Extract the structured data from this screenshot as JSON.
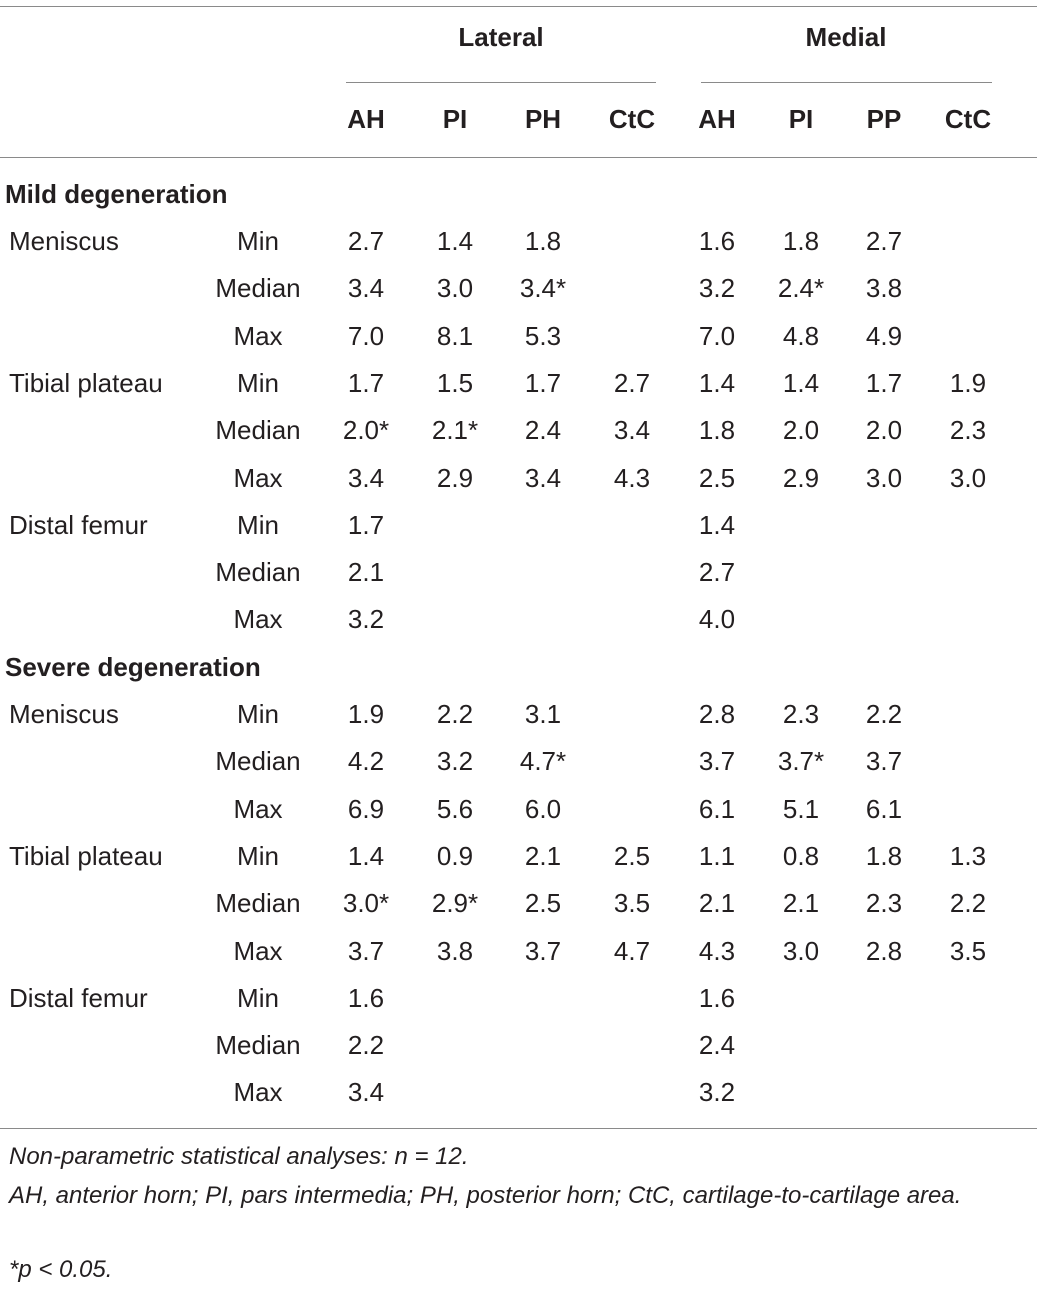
{
  "header": {
    "groups": [
      "Lateral",
      "Medial"
    ],
    "columns": [
      "AH",
      "PI",
      "PH",
      "CtC",
      "AH",
      "PI",
      "PP",
      "CtC"
    ]
  },
  "sections": [
    {
      "title": "Mild degeneration",
      "rows": [
        {
          "label": "Meniscus",
          "stat": "Min",
          "values": [
            "2.7",
            "1.4",
            "1.8",
            "",
            "1.6",
            "1.8",
            "2.7",
            ""
          ]
        },
        {
          "label": "",
          "stat": "Median",
          "values": [
            "3.4",
            "3.0",
            "3.4*",
            "",
            "3.2",
            "2.4*",
            "3.8",
            ""
          ]
        },
        {
          "label": "",
          "stat": "Max",
          "values": [
            "7.0",
            "8.1",
            "5.3",
            "",
            "7.0",
            "4.8",
            "4.9",
            ""
          ]
        },
        {
          "label": "Tibial plateau",
          "stat": "Min",
          "values": [
            "1.7",
            "1.5",
            "1.7",
            "2.7",
            "1.4",
            "1.4",
            "1.7",
            "1.9"
          ]
        },
        {
          "label": "",
          "stat": "Median",
          "values": [
            "2.0*",
            "2.1*",
            "2.4",
            "3.4",
            "1.8",
            "2.0",
            "2.0",
            "2.3"
          ]
        },
        {
          "label": "",
          "stat": "Max",
          "values": [
            "3.4",
            "2.9",
            "3.4",
            "4.3",
            "2.5",
            "2.9",
            "3.0",
            "3.0"
          ]
        },
        {
          "label": "Distal femur",
          "stat": "Min",
          "values": [
            "1.7",
            "",
            "",
            "",
            "1.4",
            "",
            "",
            ""
          ]
        },
        {
          "label": "",
          "stat": "Median",
          "values": [
            "2.1",
            "",
            "",
            "",
            "2.7",
            "",
            "",
            ""
          ]
        },
        {
          "label": "",
          "stat": "Max",
          "values": [
            "3.2",
            "",
            "",
            "",
            "4.0",
            "",
            "",
            ""
          ]
        }
      ]
    },
    {
      "title": "Severe degeneration",
      "rows": [
        {
          "label": "Meniscus",
          "stat": "Min",
          "values": [
            "1.9",
            "2.2",
            "3.1",
            "",
            "2.8",
            "2.3",
            "2.2",
            ""
          ]
        },
        {
          "label": "",
          "stat": "Median",
          "values": [
            "4.2",
            "3.2",
            "4.7*",
            "",
            "3.7",
            "3.7*",
            "3.7",
            ""
          ]
        },
        {
          "label": "",
          "stat": "Max",
          "values": [
            "6.9",
            "5.6",
            "6.0",
            "",
            "6.1",
            "5.1",
            "6.1",
            ""
          ]
        },
        {
          "label": "Tibial plateau",
          "stat": "Min",
          "values": [
            "1.4",
            "0.9",
            "2.1",
            "2.5",
            "1.1",
            "0.8",
            "1.8",
            "1.3"
          ]
        },
        {
          "label": "",
          "stat": "Median",
          "values": [
            "3.0*",
            "2.9*",
            "2.5",
            "3.5",
            "2.1",
            "2.1",
            "2.3",
            "2.2"
          ]
        },
        {
          "label": "",
          "stat": "Max",
          "values": [
            "3.7",
            "3.8",
            "3.7",
            "4.7",
            "4.3",
            "3.0",
            "2.8",
            "3.5"
          ]
        },
        {
          "label": "Distal femur",
          "stat": "Min",
          "values": [
            "1.6",
            "",
            "",
            "",
            "1.6",
            "",
            "",
            ""
          ]
        },
        {
          "label": "",
          "stat": "Median",
          "values": [
            "2.2",
            "",
            "",
            "",
            "2.4",
            "",
            "",
            ""
          ]
        },
        {
          "label": "",
          "stat": "Max",
          "values": [
            "3.4",
            "",
            "",
            "",
            "3.2",
            "",
            "",
            ""
          ]
        }
      ]
    }
  ],
  "footnotes": [
    "Non-parametric statistical analyses: n = 12.",
    "AH, anterior horn; PI, pars intermedia; PH, posterior horn; CtC, cartilage-to-cartilage area.",
    "*p < 0.05."
  ]
}
